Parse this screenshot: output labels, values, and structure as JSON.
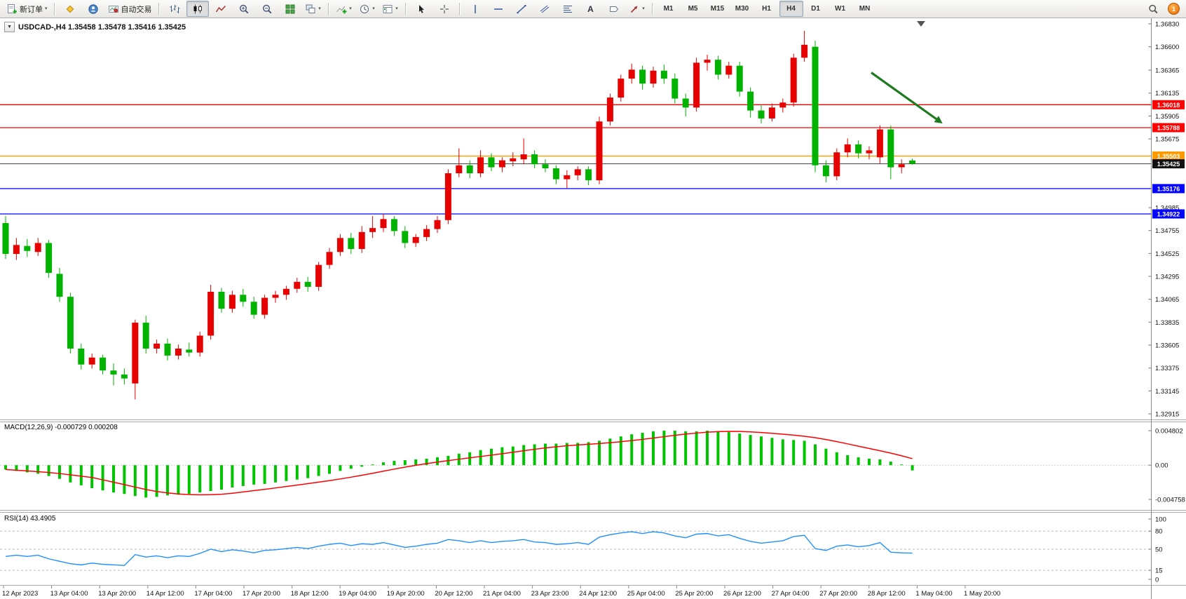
{
  "icons": {
    "caret": "▾",
    "oneclick": "▼",
    "text_tool": "A"
  },
  "toolbar": {
    "new_order_label": "新订单",
    "autotrading_label": "自动交易",
    "timeframes": [
      "M1",
      "M5",
      "M15",
      "M30",
      "H1",
      "H4",
      "D1",
      "W1",
      "MN"
    ],
    "active_timeframe": "H4",
    "notification_count": "1"
  },
  "chart_data": [
    {
      "type": "candlestick",
      "symbol": "USDCAD-",
      "timeframe": "H4",
      "title": "USDCAD-,H4 1.35458 1.35478 1.35416 1.35425",
      "current_ohlc": {
        "open": 1.35458,
        "high": 1.35478,
        "low": 1.35416,
        "close": 1.35425
      },
      "up_color": "#E60000",
      "down_color": "#00B300",
      "ylim": [
        1.32915,
        1.3683
      ],
      "y_ticks": [
        "1.36830",
        "1.36600",
        "1.36365",
        "1.36135",
        "1.35905",
        "1.35675",
        "1.34985",
        "1.34755",
        "1.34525",
        "1.34295",
        "1.34065",
        "1.33835",
        "1.33605",
        "1.33375",
        "1.33145",
        "1.32915"
      ],
      "hlines": [
        {
          "price": 1.36018,
          "color": "#FF0000",
          "label": "1.36018"
        },
        {
          "price": 1.35788,
          "color": "#FF0000",
          "label": "1.35788"
        },
        {
          "price": 1.35503,
          "color": "#FF9900",
          "label": "1.35503"
        },
        {
          "price": 1.35176,
          "color": "#0000FF",
          "label": "1.35176"
        },
        {
          "price": 1.34922,
          "color": "#0000FF",
          "label": "1.34922"
        }
      ],
      "bid": {
        "price": 1.35425,
        "label": "1.35425"
      },
      "x_labels": [
        "12 Apr 2023",
        "13 Apr 04:00",
        "13 Apr 20:00",
        "14 Apr 12:00",
        "17 Apr 04:00",
        "17 Apr 20:00",
        "18 Apr 12:00",
        "19 Apr 04:00",
        "19 Apr 20:00",
        "20 Apr 12:00",
        "21 Apr 04:00",
        "23 Apr 23:00",
        "24 Apr 12:00",
        "25 Apr 04:00",
        "25 Apr 20:00",
        "26 Apr 12:00",
        "27 Apr 04:00",
        "27 Apr 20:00",
        "28 Apr 12:00",
        "1 May 04:00",
        "1 May 20:00"
      ],
      "candles": [
        [
          1.3483,
          1.349,
          1.3447,
          1.3452
        ],
        [
          1.3452,
          1.3468,
          1.3446,
          1.3461
        ],
        [
          1.346,
          1.3467,
          1.3449,
          1.3455
        ],
        [
          1.3454,
          1.3468,
          1.345,
          1.3463
        ],
        [
          1.3463,
          1.3466,
          1.3428,
          1.3433
        ],
        [
          1.3432,
          1.3438,
          1.3404,
          1.3409
        ],
        [
          1.3409,
          1.3413,
          1.3352,
          1.3357
        ],
        [
          1.3357,
          1.3362,
          1.3336,
          1.3341
        ],
        [
          1.3341,
          1.3352,
          1.3337,
          1.3348
        ],
        [
          1.3348,
          1.3351,
          1.3331,
          1.3335
        ],
        [
          1.3335,
          1.3342,
          1.332,
          1.3331
        ],
        [
          1.3331,
          1.3337,
          1.3321,
          1.3327
        ],
        [
          1.3322,
          1.3386,
          1.3306,
          1.3383
        ],
        [
          1.3383,
          1.339,
          1.3352,
          1.3357
        ],
        [
          1.3357,
          1.3366,
          1.3352,
          1.3362
        ],
        [
          1.3362,
          1.3367,
          1.3345,
          1.335
        ],
        [
          1.335,
          1.3361,
          1.3346,
          1.3357
        ],
        [
          1.3356,
          1.3363,
          1.3349,
          1.3353
        ],
        [
          1.3353,
          1.3374,
          1.3349,
          1.337
        ],
        [
          1.337,
          1.3421,
          1.3366,
          1.3414
        ],
        [
          1.3414,
          1.3418,
          1.3393,
          1.3397
        ],
        [
          1.3397,
          1.3415,
          1.3393,
          1.3411
        ],
        [
          1.3411,
          1.3417,
          1.3399,
          1.3404
        ],
        [
          1.3404,
          1.3409,
          1.3387,
          1.3391
        ],
        [
          1.3391,
          1.3411,
          1.3387,
          1.3408
        ],
        [
          1.3408,
          1.3415,
          1.3403,
          1.3411
        ],
        [
          1.3411,
          1.342,
          1.3406,
          1.3417
        ],
        [
          1.3417,
          1.3428,
          1.3413,
          1.3424
        ],
        [
          1.3424,
          1.3429,
          1.3414,
          1.3419
        ],
        [
          1.3419,
          1.3444,
          1.3415,
          1.3441
        ],
        [
          1.3441,
          1.3458,
          1.3437,
          1.3454
        ],
        [
          1.3454,
          1.3472,
          1.345,
          1.3468
        ],
        [
          1.3468,
          1.3473,
          1.3452,
          1.3457
        ],
        [
          1.3457,
          1.348,
          1.3453,
          1.3474
        ],
        [
          1.3474,
          1.349,
          1.3468,
          1.3478
        ],
        [
          1.3478,
          1.3492,
          1.3474,
          1.3487
        ],
        [
          1.3487,
          1.349,
          1.347,
          1.3475
        ],
        [
          1.3475,
          1.348,
          1.3458,
          1.3463
        ],
        [
          1.3463,
          1.3472,
          1.3459,
          1.3469
        ],
        [
          1.3469,
          1.3481,
          1.3465,
          1.3477
        ],
        [
          1.3477,
          1.349,
          1.3473,
          1.3486
        ],
        [
          1.3486,
          1.3537,
          1.3482,
          1.3533
        ],
        [
          1.3533,
          1.3558,
          1.3529,
          1.3541
        ],
        [
          1.3541,
          1.3546,
          1.3528,
          1.3533
        ],
        [
          1.3533,
          1.3556,
          1.3529,
          1.3549
        ],
        [
          1.3549,
          1.3553,
          1.3535,
          1.3539
        ],
        [
          1.3539,
          1.3549,
          1.3534,
          1.3546
        ],
        [
          1.3545,
          1.3554,
          1.354,
          1.3548
        ],
        [
          1.3547,
          1.3568,
          1.3542,
          1.3552
        ],
        [
          1.3552,
          1.3556,
          1.3538,
          1.3542
        ],
        [
          1.3542,
          1.3547,
          1.3534,
          1.3538
        ],
        [
          1.3538,
          1.3541,
          1.3522,
          1.3527
        ],
        [
          1.3527,
          1.3536,
          1.3518,
          1.3531
        ],
        [
          1.3531,
          1.354,
          1.3526,
          1.3537
        ],
        [
          1.3537,
          1.354,
          1.3521,
          1.3526
        ],
        [
          1.3526,
          1.359,
          1.3522,
          1.3585
        ],
        [
          1.3585,
          1.3613,
          1.3581,
          1.3609
        ],
        [
          1.3609,
          1.3632,
          1.3605,
          1.3628
        ],
        [
          1.3628,
          1.3643,
          1.3623,
          1.3637
        ],
        [
          1.3637,
          1.3641,
          1.3617,
          1.3623
        ],
        [
          1.3623,
          1.364,
          1.3619,
          1.3636
        ],
        [
          1.3636,
          1.3642,
          1.3623,
          1.3628
        ],
        [
          1.3628,
          1.3633,
          1.3603,
          1.3608
        ],
        [
          1.3608,
          1.3613,
          1.359,
          1.3599
        ],
        [
          1.3599,
          1.3649,
          1.3595,
          1.3644
        ],
        [
          1.3644,
          1.3652,
          1.3636,
          1.3647
        ],
        [
          1.3647,
          1.3651,
          1.3627,
          1.3632
        ],
        [
          1.3632,
          1.3645,
          1.3628,
          1.3641
        ],
        [
          1.3641,
          1.3645,
          1.361,
          1.3615
        ],
        [
          1.3615,
          1.3619,
          1.3589,
          1.3596
        ],
        [
          1.3596,
          1.3602,
          1.3583,
          1.3588
        ],
        [
          1.3588,
          1.3603,
          1.3585,
          1.3599
        ],
        [
          1.3599,
          1.3608,
          1.3594,
          1.3604
        ],
        [
          1.3604,
          1.3653,
          1.36,
          1.3649
        ],
        [
          1.3649,
          1.3676,
          1.3645,
          1.3662
        ],
        [
          1.366,
          1.3666,
          1.3534,
          1.3541
        ],
        [
          1.3541,
          1.3546,
          1.3524,
          1.353
        ],
        [
          1.353,
          1.3558,
          1.3526,
          1.3554
        ],
        [
          1.3554,
          1.3568,
          1.3549,
          1.3562
        ],
        [
          1.3562,
          1.3566,
          1.3548,
          1.3553
        ],
        [
          1.3553,
          1.356,
          1.3547,
          1.3556
        ],
        [
          1.3549,
          1.3581,
          1.3543,
          1.3577
        ],
        [
          1.3577,
          1.3581,
          1.3527,
          1.3539
        ],
        [
          1.3539,
          1.3547,
          1.3533,
          1.3542
        ],
        [
          1.35458,
          1.35478,
          1.35416,
          1.35425
        ]
      ],
      "arrow": {
        "from": {
          "bar": 80.2,
          "price": 1.3634
        },
        "to": {
          "bar": 86.8,
          "price": 1.3583
        },
        "color": "#1E7A1E"
      }
    },
    {
      "type": "bar",
      "name": "MACD(12,26,9)",
      "title": "MACD(12,26,9) -0.000729 0.000208",
      "main_value": -0.000729,
      "signal_value": 0.000208,
      "histogram_color": "#00C400",
      "signal_color": "#FF0000",
      "signal_period": 9,
      "ylim": [
        -0.004758,
        0.004802
      ],
      "y_ticks": [
        "0.004802",
        "0.00",
        "-0.004758"
      ],
      "values": [
        -0.0006,
        -0.0008,
        -0.001,
        -0.0012,
        -0.0015,
        -0.0019,
        -0.0024,
        -0.0028,
        -0.0032,
        -0.0035,
        -0.0038,
        -0.004,
        -0.0043,
        -0.0045,
        -0.0044,
        -0.0042,
        -0.0041,
        -0.004,
        -0.0038,
        -0.0036,
        -0.0034,
        -0.0031,
        -0.0029,
        -0.0027,
        -0.0026,
        -0.0024,
        -0.0022,
        -0.002,
        -0.0018,
        -0.0015,
        -0.0012,
        -0.0008,
        -0.0005,
        -0.0002,
        0.0001,
        0.0004,
        0.0006,
        0.0007,
        0.0008,
        0.0009,
        0.0011,
        0.0013,
        0.0016,
        0.0018,
        0.0021,
        0.0023,
        0.0025,
        0.0026,
        0.0028,
        0.0029,
        0.003,
        0.003,
        0.0031,
        0.0031,
        0.0032,
        0.0034,
        0.0037,
        0.004,
        0.0043,
        0.0045,
        0.0047,
        0.0048,
        0.0048,
        0.0047,
        0.0047,
        0.0048,
        0.0047,
        0.0046,
        0.0044,
        0.0042,
        0.004,
        0.0038,
        0.0036,
        0.0035,
        0.0034,
        0.0029,
        0.0023,
        0.0018,
        0.0014,
        0.0011,
        0.0009,
        0.0008,
        0.0005,
        0.0001,
        -0.000729
      ]
    },
    {
      "type": "line",
      "name": "RSI(14)",
      "title": "RSI(14) 43.4905",
      "value": 43.4905,
      "line_color": "#1E90FF",
      "ylim": [
        0,
        100
      ],
      "levels": [
        80,
        50,
        15
      ],
      "y_ticks": [
        "100",
        "80",
        "50",
        "15",
        "0"
      ],
      "values": [
        38,
        40,
        38,
        40,
        34,
        30,
        26,
        24,
        27,
        25,
        24,
        23,
        41,
        37,
        39,
        36,
        39,
        38,
        43,
        50,
        46,
        49,
        47,
        44,
        48,
        49,
        51,
        53,
        51,
        55,
        58,
        60,
        56,
        59,
        58,
        61,
        57,
        53,
        55,
        58,
        60,
        66,
        64,
        61,
        64,
        61,
        63,
        64,
        66,
        62,
        61,
        58,
        59,
        61,
        58,
        70,
        74,
        77,
        79,
        76,
        79,
        77,
        72,
        69,
        75,
        76,
        72,
        74,
        68,
        63,
        60,
        62,
        64,
        71,
        73,
        51,
        48,
        55,
        57,
        54,
        56,
        61,
        45,
        44,
        43.49
      ]
    }
  ]
}
